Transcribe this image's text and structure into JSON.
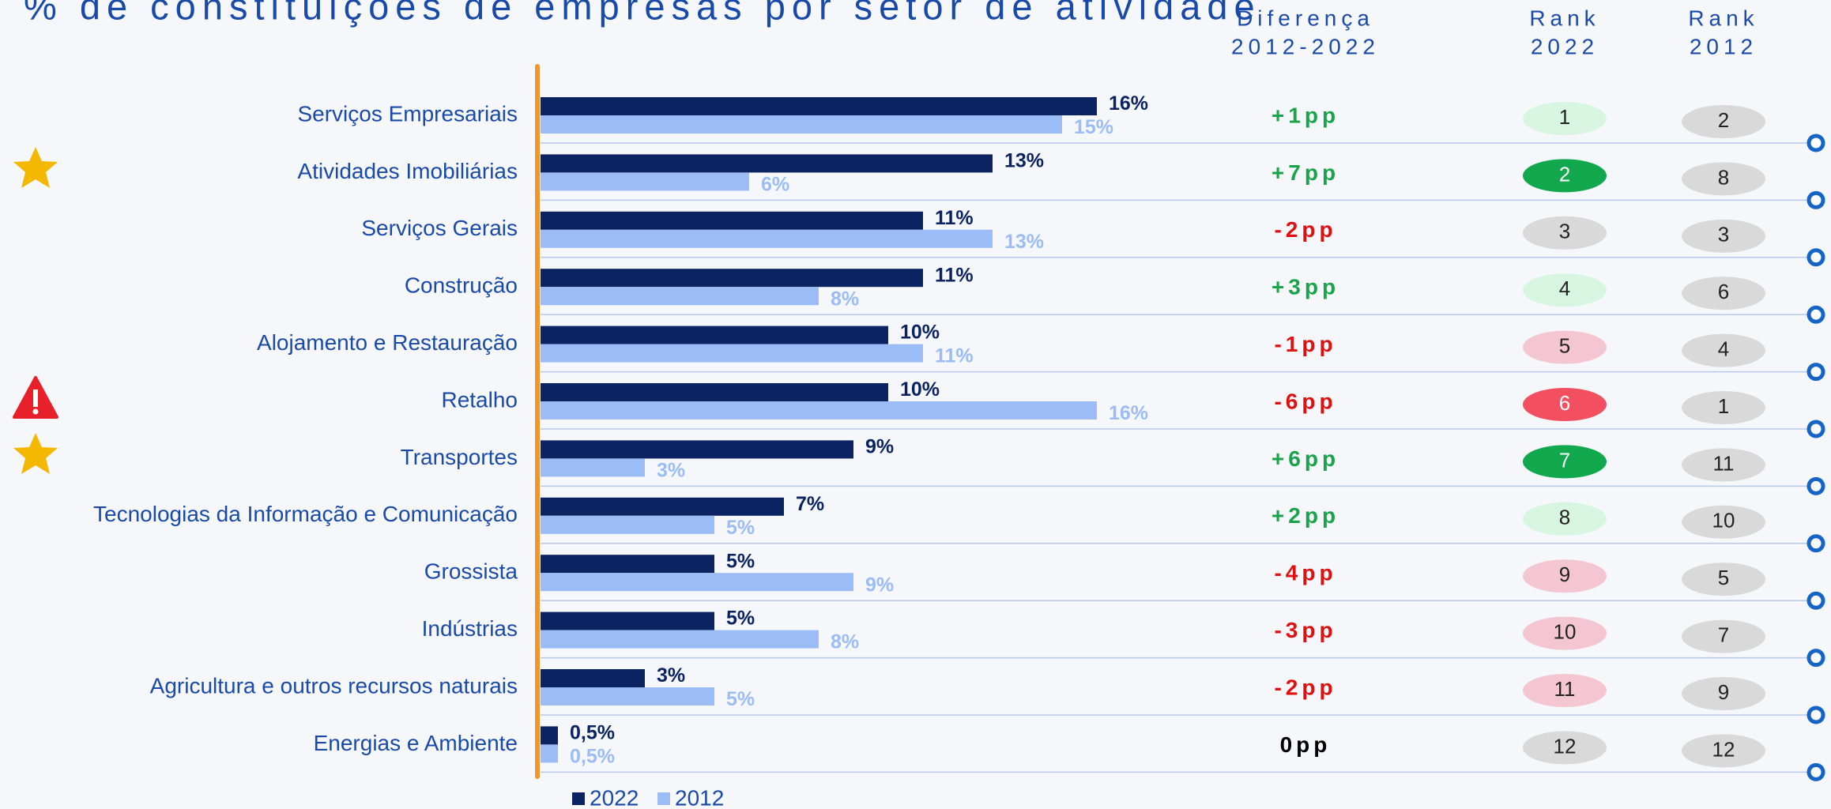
{
  "chart_data": {
    "type": "bar",
    "orientation": "horizontal",
    "title": "% de constituições de empresas por setor de atividade",
    "categories": [
      "Serviços Empresariais",
      "Atividades Imobiliárias",
      "Serviços Gerais",
      "Construção",
      "Alojamento e Restauração",
      "Retalho",
      "Transportes",
      "Tecnologias da Informação e Comunicação",
      "Grossista",
      "Indústrias",
      "Agricultura e outros recursos naturais",
      "Energias e Ambiente"
    ],
    "series": [
      {
        "name": "2022",
        "color": "#0b2360",
        "values": [
          16,
          13,
          11,
          11,
          10,
          10,
          9,
          7,
          5,
          5,
          3,
          0.5
        ],
        "value_labels": [
          "16%",
          "13%",
          "11%",
          "11%",
          "10%",
          "10%",
          "9%",
          "7%",
          "5%",
          "5%",
          "3%",
          "0,5%"
        ]
      },
      {
        "name": "2012",
        "color": "#9bbcf5",
        "values": [
          15,
          6,
          13,
          8,
          11,
          16,
          3,
          5,
          9,
          8,
          5,
          0.5
        ],
        "value_labels": [
          "15%",
          "6%",
          "13%",
          "8%",
          "11%",
          "16%",
          "3%",
          "5%",
          "9%",
          "8%",
          "5%",
          "0,5%"
        ]
      }
    ],
    "legend": "bottom"
  },
  "table": {
    "headers": {
      "diff": [
        "Diferença",
        "2012-2022"
      ],
      "rank_2022": [
        "Rank",
        "2022"
      ],
      "rank_2012": [
        "Rank",
        "2012"
      ]
    },
    "diff": [
      "+1pp",
      "+7pp",
      "-2pp",
      "+3pp",
      "-1pp",
      "-6pp",
      "+6pp",
      "+2pp",
      "-4pp",
      "-3pp",
      "-2pp",
      "0pp"
    ],
    "diff_colors": [
      "#1aa34a",
      "#1aa34a",
      "#e01010",
      "#1aa34a",
      "#e01010",
      "#e01010",
      "#1aa34a",
      "#1aa34a",
      "#e01010",
      "#e01010",
      "#e01010",
      "#000000"
    ],
    "rank_2022": [
      "1",
      "2",
      "3",
      "4",
      "5",
      "6",
      "7",
      "8",
      "9",
      "10",
      "11",
      "12"
    ],
    "rank_2022_colors": [
      "#d8f5e2",
      "#12a84e",
      "#d9d9d9",
      "#d8f5e2",
      "#f3c6d2",
      "#f24f60",
      "#12a84e",
      "#d8f5e2",
      "#f3c6d2",
      "#f3c6d2",
      "#f3c6d2",
      "#d9d9d9"
    ],
    "rank_2012": [
      "2",
      "8",
      "3",
      "6",
      "4",
      "1",
      "11",
      "10",
      "5",
      "7",
      "9",
      "12"
    ],
    "rank_2012_color": "#d9d9d9"
  }
}
